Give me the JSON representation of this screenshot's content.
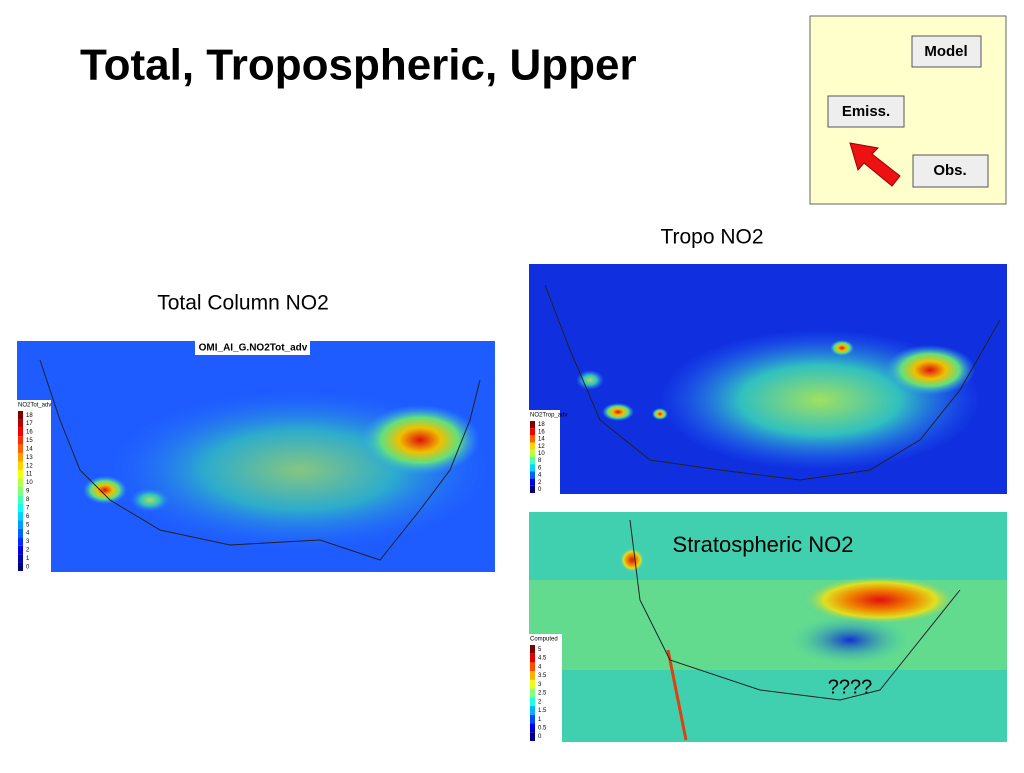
{
  "title": "Total, Tropospheric, Upper",
  "diagram": {
    "boxes": [
      "Model",
      "Emiss.",
      "Obs."
    ]
  },
  "panels": [
    {
      "label": "Total Column NO2",
      "map_title": "OMI_AI_G.NO2Tot_adv",
      "colorbar": {
        "title": "NO2Tot_adv",
        "ticks": [
          18,
          17,
          16,
          15,
          14,
          13,
          12,
          11,
          10,
          9,
          8,
          7,
          6,
          5,
          4,
          3,
          2,
          1,
          0
        ]
      }
    },
    {
      "label": "Tropo NO2",
      "colorbar": {
        "title": "NO2Trop_adv",
        "ticks": [
          18,
          16,
          14,
          12,
          10,
          8,
          6,
          4,
          2,
          0
        ]
      }
    },
    {
      "label": "Stratospheric NO2",
      "annotation": "????",
      "colorbar": {
        "title": "Computed",
        "ticks": [
          5,
          4.5,
          4,
          3.5,
          3,
          2.5,
          2,
          1.5,
          1,
          0.5,
          0
        ]
      }
    }
  ]
}
